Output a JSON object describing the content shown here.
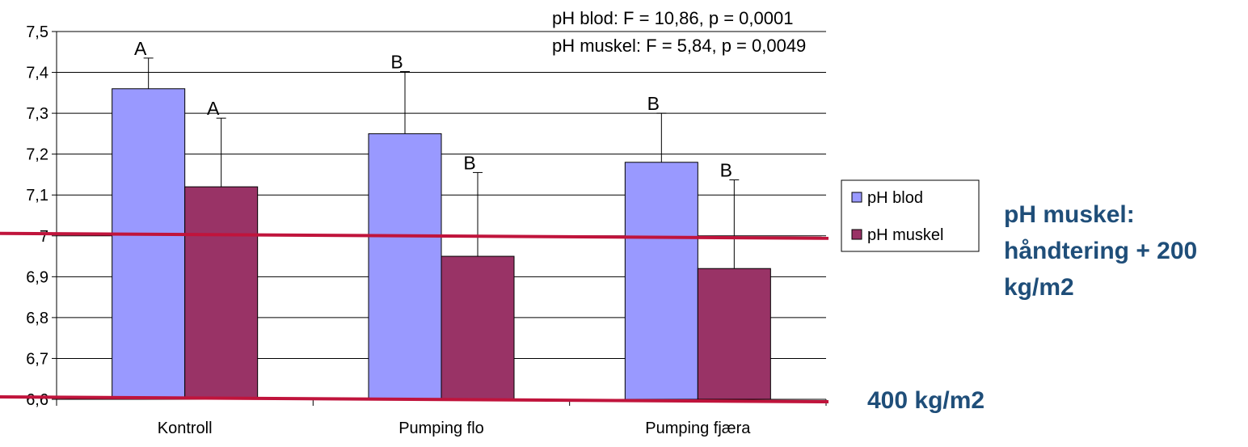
{
  "chart_data": {
    "type": "bar",
    "categories": [
      "Kontroll",
      "Pumping flo",
      "Pumping fjæra"
    ],
    "series": [
      {
        "name": "pH blod",
        "values": [
          7.36,
          7.25,
          7.18
        ],
        "err_upper": [
          7.435,
          7.402,
          7.3
        ],
        "letters": [
          "A",
          "B",
          "B"
        ],
        "color": "#9999ff"
      },
      {
        "name": "pH muskel",
        "values": [
          7.12,
          6.95,
          6.92
        ],
        "err_upper": [
          7.288,
          7.155,
          7.137
        ],
        "letters": [
          "A",
          "B",
          "B"
        ],
        "color": "#993366"
      }
    ],
    "ylim": [
      6.6,
      7.5
    ],
    "yticks": [
      "6,6",
      "6,7",
      "6,8",
      "6,9",
      "7",
      "7,1",
      "7,2",
      "7,3",
      "7,4",
      "7,5"
    ],
    "grid": true,
    "legend": "right",
    "stats": [
      "pH blod: F = 10,86, p = 0,0001",
      "pH muskel: F = 5,84, p = 0,0049"
    ],
    "reference_lines": [
      {
        "value": 7.0,
        "color": "#c0143c"
      },
      {
        "value": 6.6,
        "color": "#c0143c"
      }
    ],
    "annotations": {
      "upper": [
        "pH muskel:",
        "håndtering + 200",
        "kg/m2"
      ],
      "lower": "400 kg/m2",
      "color": "#1f4e79"
    }
  }
}
